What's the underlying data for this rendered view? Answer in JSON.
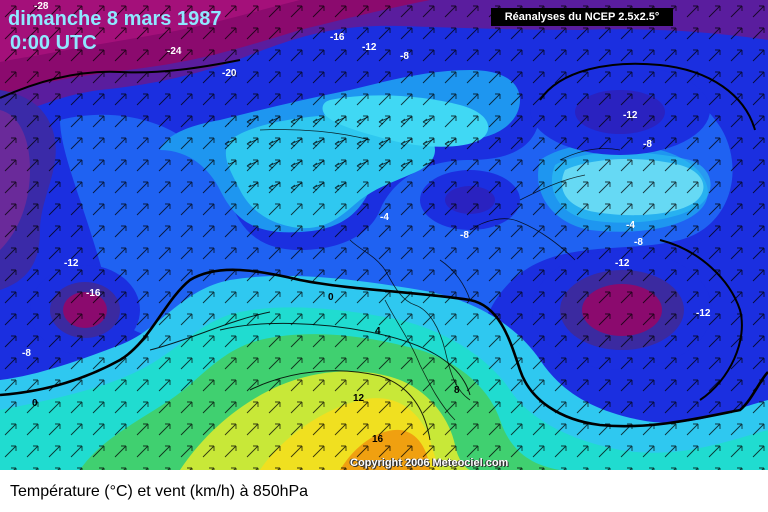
{
  "header": {
    "date": "dimanche 8 mars 1987",
    "time": "0:00 UTC"
  },
  "source": "Réanalyses du NCEP 2.5x2.5°",
  "copyright": "Copyright 2006 Meteociel.com",
  "caption": "Température (°C) et vent (km/h) à 850hPa",
  "contour_labels": [
    {
      "id": "l1",
      "text": "-28"
    },
    {
      "id": "l2",
      "text": "-24"
    },
    {
      "id": "l3",
      "text": "-20"
    },
    {
      "id": "l4",
      "text": "-16"
    },
    {
      "id": "l5",
      "text": "-12"
    },
    {
      "id": "l6",
      "text": "-8"
    },
    {
      "id": "l7",
      "text": "-12"
    },
    {
      "id": "l8",
      "text": "-8"
    },
    {
      "id": "l9",
      "text": "-4"
    },
    {
      "id": "l10",
      "text": "-8"
    },
    {
      "id": "l11",
      "text": "-4"
    },
    {
      "id": "l12",
      "text": "-8"
    },
    {
      "id": "l13",
      "text": "-12"
    },
    {
      "id": "l14",
      "text": "-12"
    },
    {
      "id": "l15",
      "text": "-12"
    },
    {
      "id": "l16",
      "text": "-16"
    },
    {
      "id": "l17",
      "text": "-8"
    },
    {
      "id": "l18",
      "text": "0"
    },
    {
      "id": "l19",
      "text": "0"
    },
    {
      "id": "l20",
      "text": "4"
    },
    {
      "id": "l21",
      "text": "8"
    },
    {
      "id": "l22",
      "text": "12"
    },
    {
      "id": "l23",
      "text": "16"
    }
  ],
  "colors": {
    "very_cold": "#8b0a6e",
    "purple": "#6a1a9a",
    "deep_blue": "#1a1ad0",
    "blue": "#1f5cf0",
    "mid_blue": "#1e90f0",
    "light_blue": "#2fc6f0",
    "pale_blue": "#a0ecf8",
    "cyan": "#20d8e0",
    "green": "#40d070",
    "yellow_green": "#c8e838",
    "yellow": "#f0e020",
    "orange": "#f0a010"
  }
}
